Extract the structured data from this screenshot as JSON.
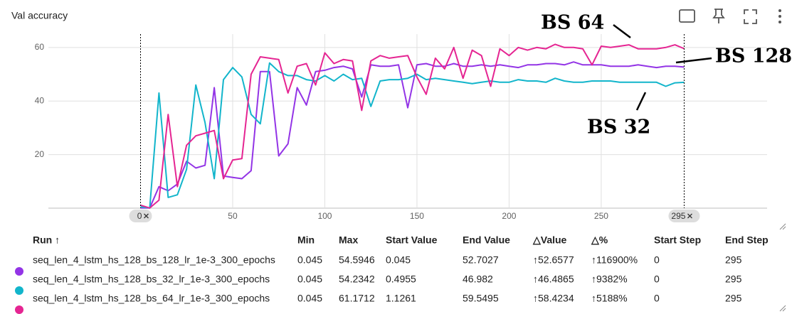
{
  "title": "Val accuracy",
  "chart_data": {
    "type": "line",
    "x": [
      0,
      5,
      10,
      15,
      20,
      25,
      30,
      35,
      40,
      45,
      50,
      55,
      60,
      65,
      70,
      75,
      80,
      85,
      90,
      95,
      100,
      105,
      110,
      115,
      120,
      125,
      130,
      135,
      140,
      145,
      150,
      155,
      160,
      165,
      170,
      175,
      180,
      185,
      190,
      195,
      200,
      205,
      210,
      215,
      220,
      225,
      230,
      235,
      240,
      245,
      250,
      255,
      260,
      265,
      270,
      275,
      280,
      285,
      290,
      295
    ],
    "series": [
      {
        "name": "BS 128",
        "color": "#9334e6",
        "values": [
          0.045,
          0.045,
          8,
          6.5,
          9,
          17.5,
          15,
          16,
          45,
          12,
          11.5,
          11,
          14,
          51,
          51,
          19.5,
          24,
          45,
          38.5,
          51,
          51.5,
          52.5,
          53,
          52,
          41.5,
          53.5,
          53,
          53,
          53.5,
          37.5,
          53.5,
          54,
          53,
          53,
          54,
          53,
          53,
          53.5,
          53,
          53.5,
          53,
          52.5,
          53.5,
          53.5,
          54,
          54,
          53.5,
          54.5946,
          53.5,
          53.5,
          53.5,
          53,
          53,
          53,
          53.5,
          53,
          52.5,
          53,
          53,
          52.7027
        ]
      },
      {
        "name": "BS 32",
        "color": "#12b5cb",
        "values": [
          0.4955,
          0.045,
          43,
          4,
          5,
          14.5,
          46,
          32,
          11,
          48,
          52.5,
          49,
          35,
          31.5,
          54.2342,
          51,
          49.5,
          49.5,
          48,
          47.5,
          49.5,
          47.5,
          50,
          48,
          48.5,
          38,
          47.5,
          48,
          48,
          48.5,
          50,
          48,
          48.5,
          48,
          47.5,
          47,
          46.5,
          47,
          47.5,
          47,
          47,
          48,
          47.5,
          47.5,
          47,
          48.5,
          47.5,
          47,
          47,
          47.5,
          47.5,
          47.5,
          47,
          47,
          47,
          47,
          47,
          45.5,
          46.8,
          46.982
        ]
      },
      {
        "name": "BS 64",
        "color": "#e52592",
        "values": [
          1.1261,
          0.045,
          3,
          35,
          8,
          23.5,
          27,
          28,
          29,
          11,
          18,
          18.5,
          50,
          56.5,
          56,
          55.5,
          43,
          53,
          54,
          46,
          58,
          54,
          55.5,
          55,
          36.5,
          55,
          57,
          56,
          56.5,
          57,
          49,
          42.5,
          56,
          52,
          60,
          48.5,
          59,
          57,
          45.5,
          59.5,
          57,
          60,
          59,
          60,
          59.5,
          61.1712,
          60,
          60,
          59.5,
          53.5,
          60.5,
          60,
          60.5,
          61,
          59.5,
          59.5,
          59.5,
          60,
          61,
          59.5495
        ]
      }
    ],
    "xlim": [
      -50,
      340
    ],
    "xticks": [
      50,
      100,
      150,
      200,
      250
    ],
    "ylim": [
      0,
      65
    ],
    "yticks": [
      20,
      40,
      60
    ],
    "grid": true,
    "range_markers": [
      0,
      295
    ]
  },
  "table": {
    "columns": [
      "Run ↑",
      "Min",
      "Max",
      "Start Value",
      "End Value",
      "△Value",
      "△%",
      "Start Step",
      "End Step"
    ],
    "rows": [
      [
        "seq_len_4_lstm_hs_128_bs_128_lr_1e-3_300_epochs",
        "0.045",
        "54.5946",
        "0.045",
        "52.7027",
        "↑52.6577",
        "↑116900%",
        "0",
        "295"
      ],
      [
        "seq_len_4_lstm_hs_128_bs_32_lr_1e-3_300_epochs",
        "0.045",
        "54.2342",
        "0.4955",
        "46.982",
        "↑46.4865",
        "↑9382%",
        "0",
        "295"
      ],
      [
        "seq_len_4_lstm_hs_128_bs_64_lr_1e-3_300_epochs",
        "0.045",
        "61.1712",
        "1.1261",
        "59.5495",
        "↑58.4234",
        "↑5188%",
        "0",
        "295"
      ]
    ]
  }
}
